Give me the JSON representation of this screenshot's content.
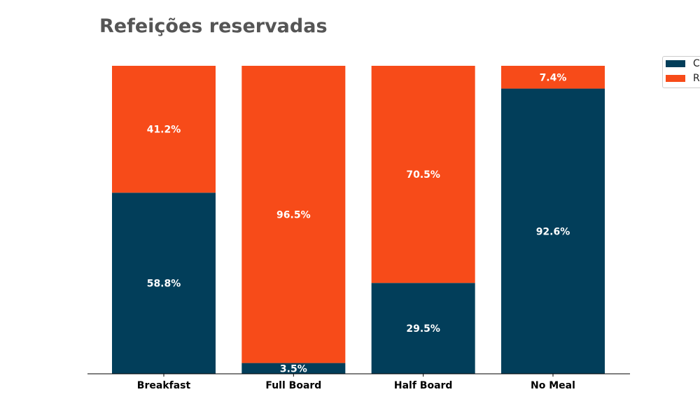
{
  "title": "Refeições reservadas",
  "colors": {
    "series_0": "#023e5a",
    "series_1": "#f74b19",
    "title": "#555555"
  },
  "chart_data": {
    "type": "bar",
    "stacked": true,
    "normalized": true,
    "title": "Refeições reservadas",
    "categories": [
      "Breakfast",
      "Full Board",
      "Half Board",
      "No Meal"
    ],
    "series": [
      {
        "name": "C",
        "values": [
          58.8,
          3.5,
          29.5,
          92.6
        ],
        "labels": [
          "58.8%",
          "3.5%",
          "29.5%",
          "92.6%"
        ]
      },
      {
        "name": "R",
        "values": [
          41.2,
          96.5,
          70.5,
          7.4
        ],
        "labels": [
          "41.2%",
          "96.5%",
          "70.5%",
          "7.4%"
        ]
      }
    ],
    "ylim": [
      0,
      100
    ],
    "xlabel": "",
    "ylabel": "",
    "grid": false,
    "legend_position": "top-right, partially cut off"
  }
}
